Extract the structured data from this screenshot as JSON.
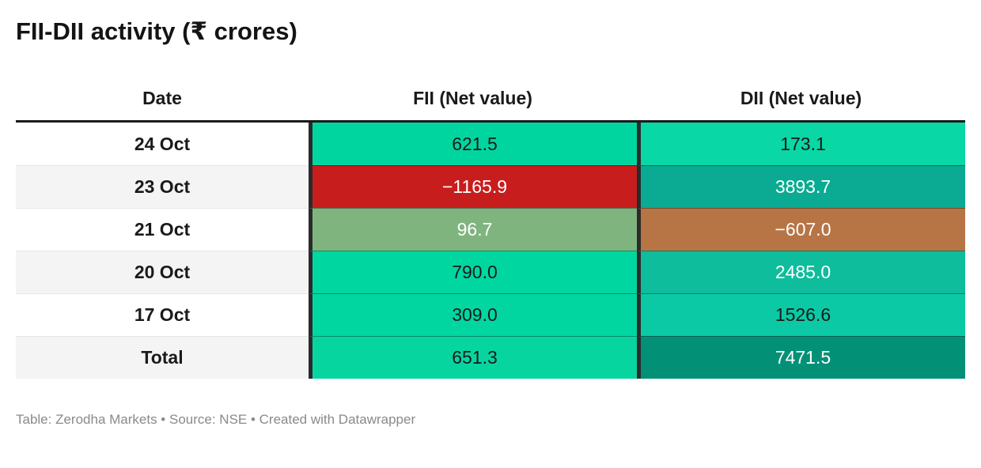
{
  "title": "FII-DII activity (₹ crores)",
  "table": {
    "columns": [
      "Date",
      "FII (Net value)",
      "DII (Net value)"
    ],
    "rows": [
      {
        "date": "24 Oct",
        "fii": {
          "display": "621.5",
          "bg": "#00d5a0",
          "fg": "#1a1a1a"
        },
        "dii": {
          "display": "173.1",
          "bg": "#09d7a5",
          "fg": "#1a1a1a"
        }
      },
      {
        "date": "23 Oct",
        "fii": {
          "display": "−1165.9",
          "bg": "#c81d1d",
          "fg": "#ffffff"
        },
        "dii": {
          "display": "3893.7",
          "bg": "#0aab92",
          "fg": "#ffffff"
        }
      },
      {
        "date": "21 Oct",
        "fii": {
          "display": "96.7",
          "bg": "#7fb47f",
          "fg": "#ffffff"
        },
        "dii": {
          "display": "−607.0",
          "bg": "#b77545",
          "fg": "#ffffff"
        }
      },
      {
        "date": "20 Oct",
        "fii": {
          "display": "790.0",
          "bg": "#00d6a0",
          "fg": "#1a1a1a"
        },
        "dii": {
          "display": "2485.0",
          "bg": "#0dbd9c",
          "fg": "#ffffff"
        }
      },
      {
        "date": "17 Oct",
        "fii": {
          "display": "309.0",
          "bg": "#01d6a1",
          "fg": "#1a1a1a"
        },
        "dii": {
          "display": "1526.6",
          "bg": "#0bc9a4",
          "fg": "#1a1a1a"
        }
      },
      {
        "date": "Total",
        "fii": {
          "display": "651.3",
          "bg": "#07d5a0",
          "fg": "#1a1a1a"
        },
        "dii": {
          "display": "7471.5",
          "bg": "#029177",
          "fg": "#ffffff"
        }
      }
    ]
  },
  "footer": "Table: Zerodha Markets • Source: NSE • Created with Datawrapper",
  "colors": {
    "header_rule": "#1a1a1a",
    "column_divider": "#2b2b2b",
    "stripe": "#f4f4f4",
    "date_row_border": "#e6e6e6",
    "footer_text": "#8a8a8a",
    "title_text": "#141414",
    "positive_green": "#00d5a0",
    "negative_red": "#c81d1d",
    "negative_brown": "#b77545",
    "dii_teal": "#0aab92"
  },
  "chart_data": {
    "type": "table",
    "title": "FII-DII activity (₹ crores)",
    "columns": [
      "Date",
      "FII (Net value)",
      "DII (Net value)"
    ],
    "rows": [
      [
        "24 Oct",
        621.5,
        173.1
      ],
      [
        "23 Oct",
        -1165.9,
        3893.7
      ],
      [
        "21 Oct",
        96.7,
        -607.0
      ],
      [
        "20 Oct",
        790.0,
        2485.0
      ],
      [
        "17 Oct",
        309.0,
        1526.6
      ],
      [
        "Total",
        651.3,
        7471.5
      ]
    ],
    "layout_hints": "heatmap-style table; positive values green/teal, negative values red (FII) and brown (DII); darker teal for larger DII values; alternating white/light-gray stripes in Date column",
    "source": "Table: Zerodha Markets • Source: NSE • Created with Datawrapper"
  }
}
